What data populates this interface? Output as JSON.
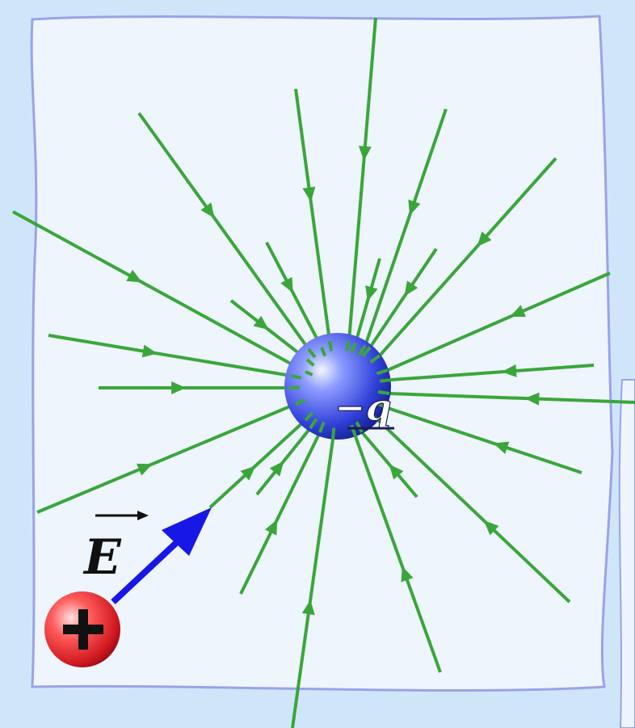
{
  "labels": {
    "central_charge": "−q",
    "field_vector": "E",
    "test_charge_sign": "+"
  },
  "colors": {
    "background": "#cfe6fa",
    "sheet_fill": "#eef5fd",
    "sheet_edge": "#9aa3e6",
    "field_line": "#3aa63a",
    "central_charge": "#2f3fd8",
    "test_charge": "#e0242b",
    "vector_arrow": "#1717e6"
  },
  "icons": {
    "central_charge": "negative-charge-sphere",
    "test_charge": "positive-charge-sphere",
    "vector": "arrow-icon"
  }
}
